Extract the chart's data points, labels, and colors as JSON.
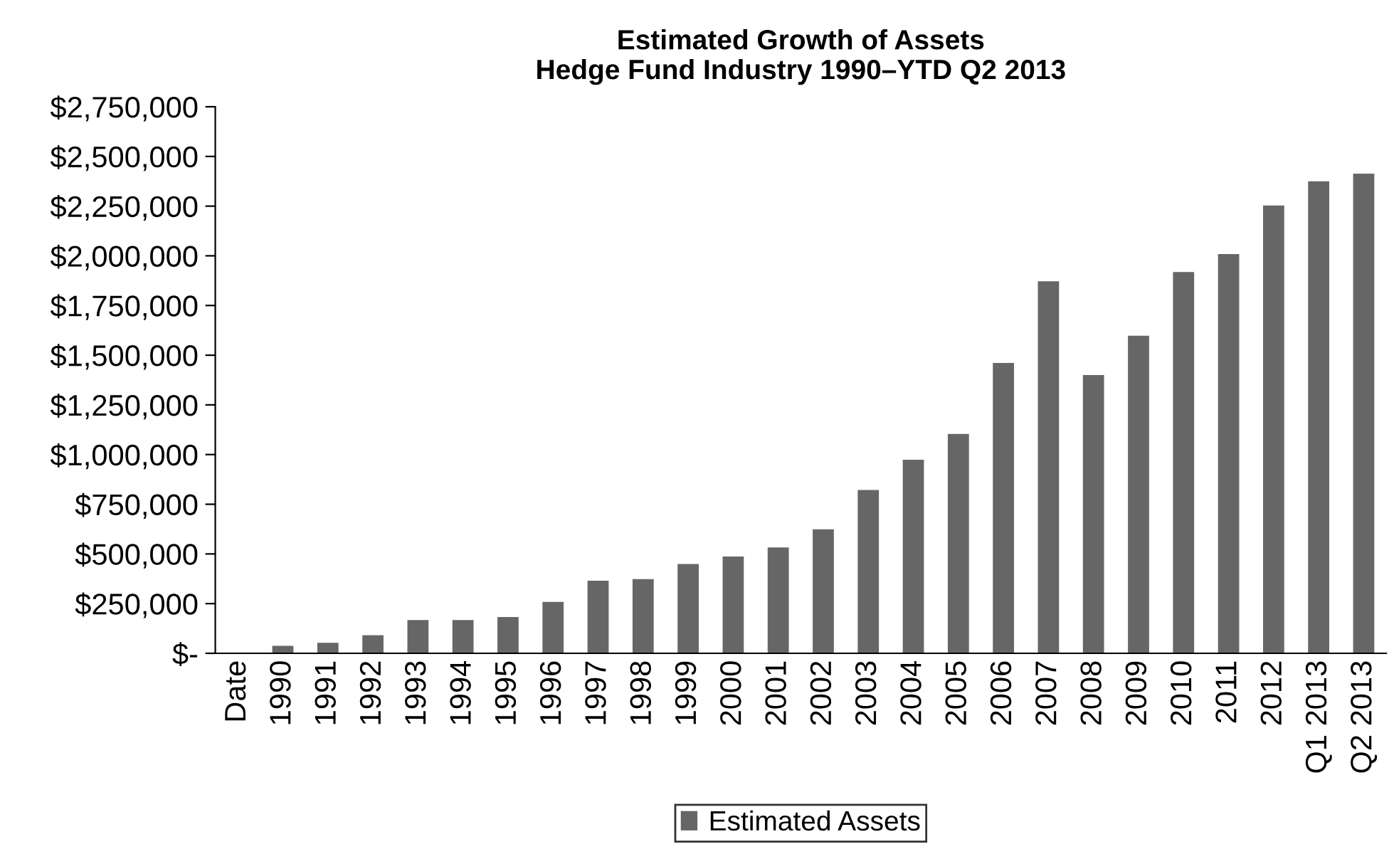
{
  "chart_data": {
    "type": "bar",
    "title": "Estimated Growth of Assets\nHedge Fund Industry 1990–YTD Q2 2013",
    "categories": [
      "Date",
      "1990",
      "1991",
      "1992",
      "1993",
      "1994",
      "1995",
      "1996",
      "1997",
      "1998",
      "1999",
      "2000",
      "2001",
      "2002",
      "2003",
      "2004",
      "2005",
      "2006",
      "2007",
      "2008",
      "2009",
      "2010",
      "2011",
      "2012",
      "Q1 2013",
      "Q2 2013"
    ],
    "series": [
      {
        "name": "Estimated Assets",
        "color": "#666666",
        "values": [
          null,
          38000,
          53000,
          91000,
          167000,
          167000,
          183000,
          259000,
          365000,
          373000,
          449000,
          487000,
          533000,
          624000,
          822000,
          974000,
          1104000,
          1461000,
          1872000,
          1400000,
          1598000,
          1918000,
          2009000,
          2253000,
          2375000,
          2413000
        ]
      }
    ],
    "ylim": [
      0,
      2750000
    ],
    "yticks": [
      {
        "value": 0,
        "label": "$-"
      },
      {
        "value": 250000,
        "label": "$250,000"
      },
      {
        "value": 500000,
        "label": "$500,000"
      },
      {
        "value": 750000,
        "label": "$750,000"
      },
      {
        "value": 1000000,
        "label": "$1,000,000"
      },
      {
        "value": 1250000,
        "label": "$1,250,000"
      },
      {
        "value": 1500000,
        "label": "$1,500,000"
      },
      {
        "value": 1750000,
        "label": "$1,750,000"
      },
      {
        "value": 2000000,
        "label": "$2,000,000"
      },
      {
        "value": 2250000,
        "label": "$2,250,000"
      },
      {
        "value": 2500000,
        "label": "$2,500,000"
      },
      {
        "value": 2750000,
        "label": "$2,750,000"
      }
    ],
    "grid": false,
    "legend": "bottom"
  }
}
